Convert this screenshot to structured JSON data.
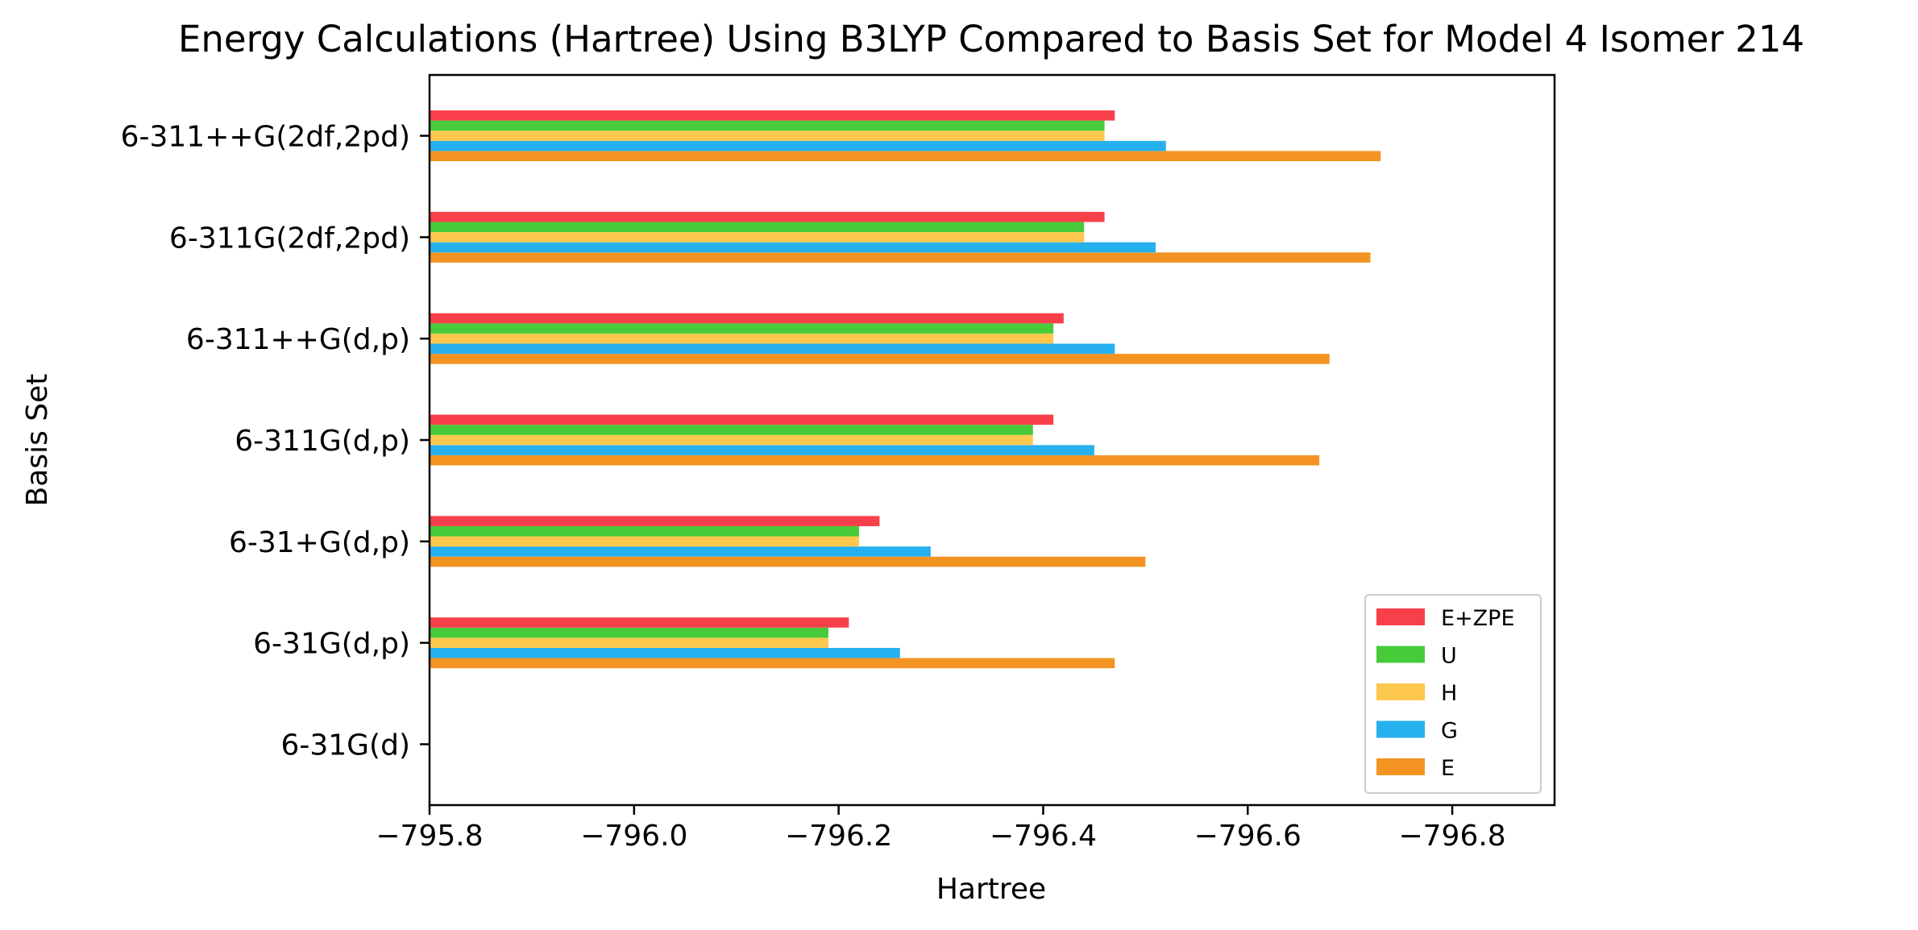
{
  "chart_data": {
    "type": "bar",
    "orientation": "horizontal",
    "title": "Energy Calculations (Hartree) Using B3LYP Compared to Basis Set for Model 4 Isomer 214",
    "xlabel": "Hartree",
    "ylabel": "Basis Set",
    "xlim": [
      -795.8,
      -796.9
    ],
    "x_inverted": true,
    "xticks": [
      "−795.8",
      "−796.0",
      "−796.2",
      "−796.4",
      "−796.6",
      "−796.8"
    ],
    "xtick_values": [
      -795.8,
      -796.0,
      -796.2,
      -796.4,
      -796.6,
      -796.8
    ],
    "grid": false,
    "legend_position": "lower-right",
    "categories": [
      "6-31G(d)",
      "6-31G(d,p)",
      "6-31+G(d,p)",
      "6-311G(d,p)",
      "6-311++G(d,p)",
      "6-311G(2df,2pd)",
      "6-311++G(2df,2pd)"
    ],
    "series": [
      {
        "name": "E",
        "color": "#f39422",
        "values": [
          null,
          -796.47,
          -796.5,
          -796.67,
          -796.68,
          -796.72,
          -796.73
        ]
      },
      {
        "name": "G",
        "color": "#27b0ee",
        "values": [
          null,
          -796.26,
          -796.29,
          -796.45,
          -796.47,
          -796.51,
          -796.52
        ]
      },
      {
        "name": "H",
        "color": "#fec84f",
        "values": [
          null,
          -796.19,
          -796.22,
          -796.39,
          -796.41,
          -796.44,
          -796.46
        ]
      },
      {
        "name": "U",
        "color": "#48cb3b",
        "values": [
          null,
          -796.19,
          -796.22,
          -796.39,
          -796.41,
          -796.44,
          -796.46
        ]
      },
      {
        "name": "E+ZPE",
        "color": "#f7404a",
        "values": [
          null,
          -796.21,
          -796.24,
          -796.41,
          -796.42,
          -796.46,
          -796.47
        ]
      }
    ],
    "legend_order": [
      "E+ZPE",
      "U",
      "H",
      "G",
      "E"
    ]
  }
}
